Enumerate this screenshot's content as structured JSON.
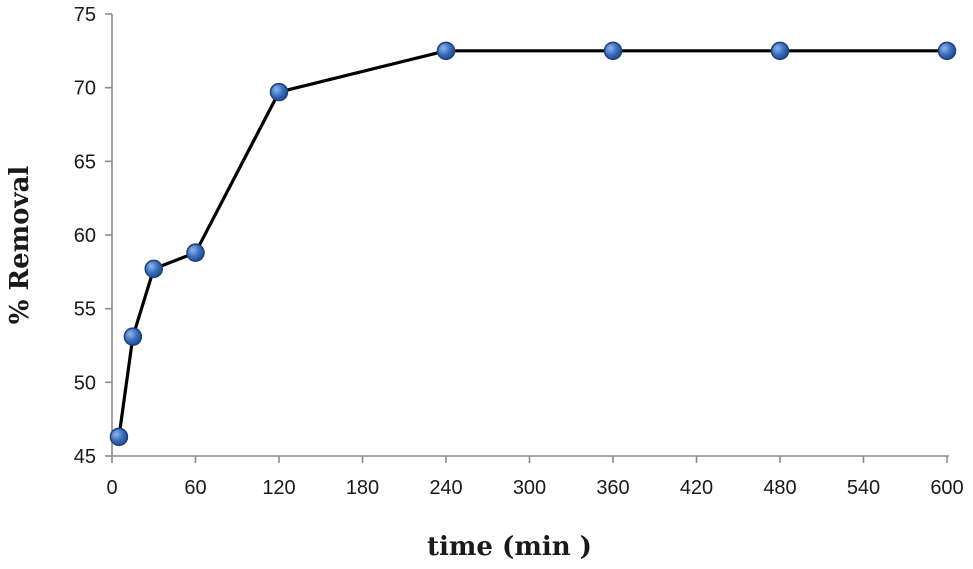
{
  "chart_data": {
    "type": "line",
    "title": "",
    "xlabel": "time (min )",
    "ylabel": "% Removal",
    "xlim": [
      0,
      600
    ],
    "ylim": [
      45,
      75
    ],
    "x_ticks": [
      0,
      60,
      120,
      180,
      240,
      300,
      360,
      420,
      480,
      540,
      600
    ],
    "y_ticks": [
      45,
      50,
      55,
      60,
      65,
      70,
      75
    ],
    "grid": false,
    "legend": "none",
    "series": [
      {
        "line_color": "#000000",
        "marker_color": "#2e62b4",
        "x": [
          5,
          15,
          30,
          60,
          120,
          240,
          360,
          480,
          600
        ],
        "y": [
          46.3,
          53.1,
          57.7,
          58.8,
          69.7,
          72.5,
          72.5,
          72.5,
          72.5
        ]
      }
    ]
  }
}
